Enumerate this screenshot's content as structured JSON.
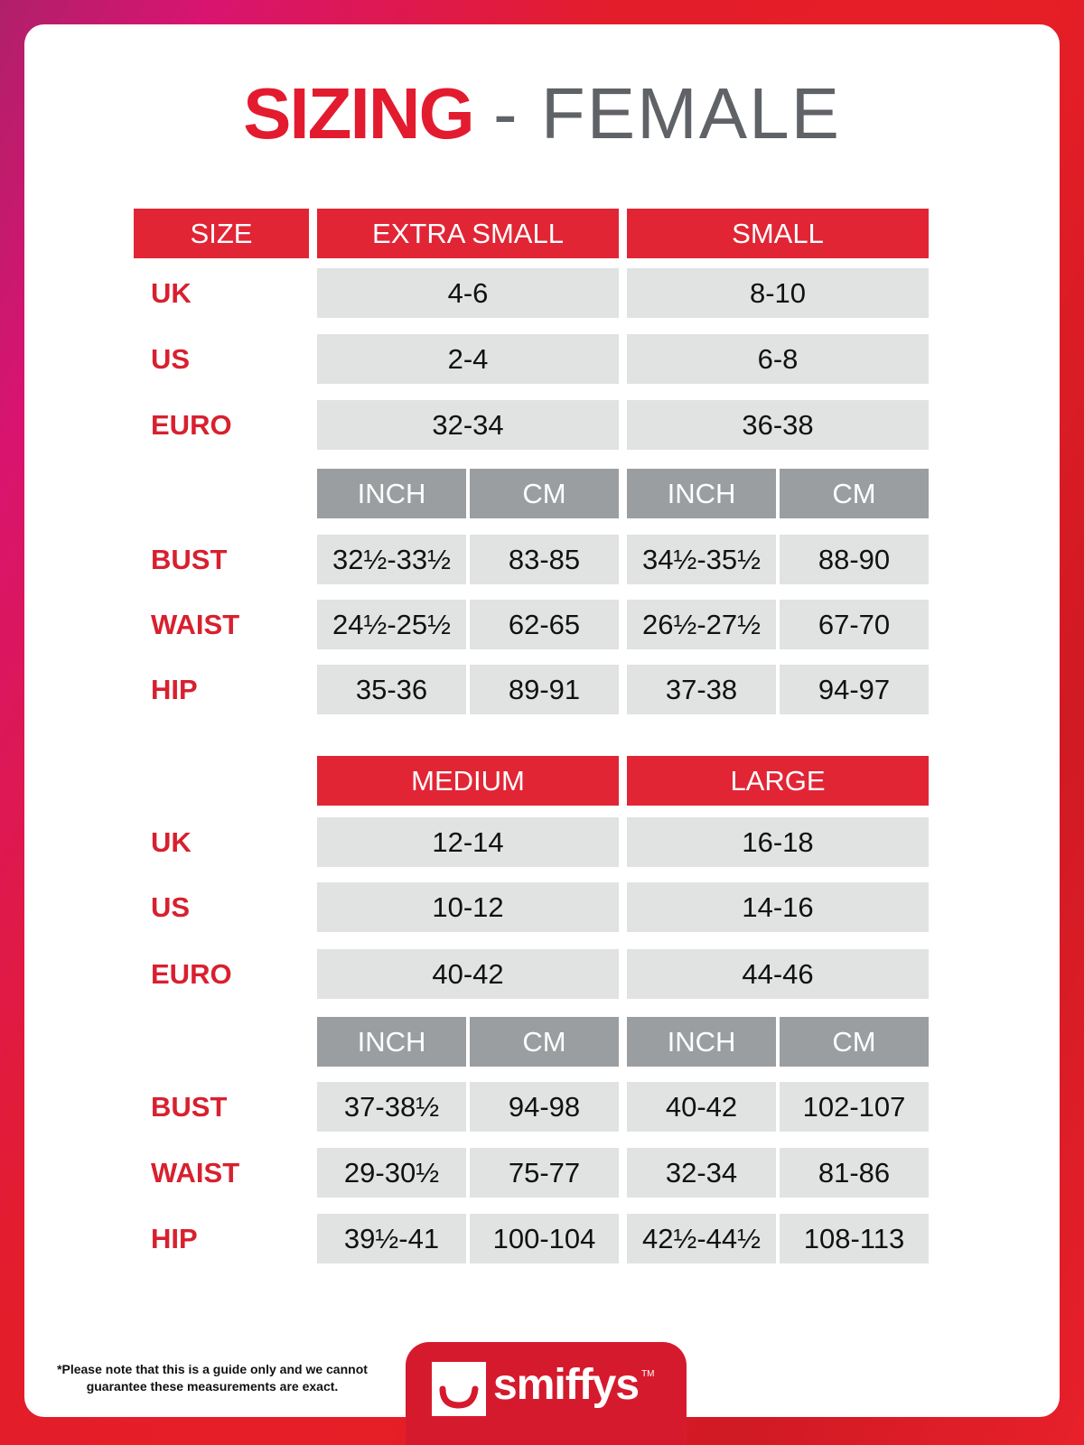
{
  "title": {
    "primary": "SIZING",
    "secondary": "- FEMALE"
  },
  "colors": {
    "accent": "#e12535",
    "unit_header": "#9b9ea0",
    "cell": "#e1e2e2",
    "label": "#d8202f"
  },
  "size_header": "SIZE",
  "row_labels": {
    "uk": "UK",
    "us": "US",
    "euro": "EURO",
    "bust": "BUST",
    "waist": "WAIST",
    "hip": "HIP"
  },
  "units": {
    "inch": "INCH",
    "cm": "CM"
  },
  "tables": [
    {
      "sizes": [
        {
          "name": "EXTRA SMALL",
          "uk": "4-6",
          "us": "2-4",
          "euro": "32-34",
          "bust": [
            "32½-33½",
            "83-85"
          ],
          "waist": [
            "24½-25½",
            "62-65"
          ],
          "hip": [
            "35-36",
            "89-91"
          ]
        },
        {
          "name": "SMALL",
          "uk": "8-10",
          "us": "6-8",
          "euro": "36-38",
          "bust": [
            "34½-35½",
            "88-90"
          ],
          "waist": [
            "26½-27½",
            "67-70"
          ],
          "hip": [
            "37-38",
            "94-97"
          ]
        }
      ]
    },
    {
      "sizes": [
        {
          "name": "MEDIUM",
          "uk": "12-14",
          "us": "10-12",
          "euro": "40-42",
          "bust": [
            "37-38½",
            "94-98"
          ],
          "waist": [
            "29-30½",
            "75-77"
          ],
          "hip": [
            "39½-41",
            "100-104"
          ]
        },
        {
          "name": "LARGE",
          "uk": "16-18",
          "us": "14-16",
          "euro": "44-46",
          "bust": [
            "40-42",
            "102-107"
          ],
          "waist": [
            "32-34",
            "81-86"
          ],
          "hip": [
            "42½-44½",
            "108-113"
          ]
        }
      ]
    }
  ],
  "footer": {
    "note": "*Please note that this is a guide only and we cannot guarantee these measurements are exact.",
    "logo_text": "smiffys",
    "trademark": "TM"
  }
}
